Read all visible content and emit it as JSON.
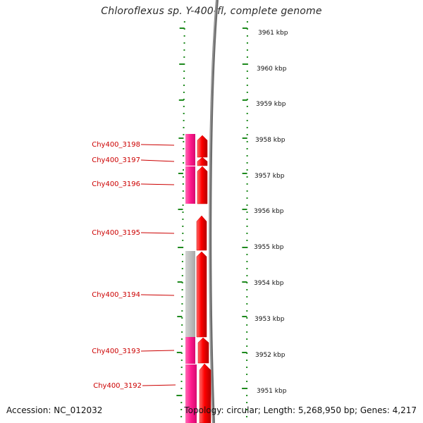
{
  "title": "Chloroflexus sp. Y-400-fl, complete genome",
  "accession_text": "Accession: NC_012032",
  "topology_text": "Topology: circular; Length: 5,268,950 bp; Genes: 4,217",
  "genome_axis": {
    "unit": "kbp",
    "tick_labels": [
      "3961 kbp",
      "3960 kbp",
      "3959 kbp",
      "3958 kbp",
      "3957 kbp",
      "3956 kbp",
      "3955 kbp",
      "3954 kbp",
      "3953 kbp",
      "3952 kbp",
      "3951 kbp"
    ]
  },
  "genes": [
    {
      "id": "Chy400_3198",
      "label_color": "#cc0000"
    },
    {
      "id": "Chy400_3197",
      "label_color": "#cc0000"
    },
    {
      "id": "Chy400_3196",
      "label_color": "#cc0000"
    },
    {
      "id": "Chy400_3195",
      "label_color": "#cc0000"
    },
    {
      "id": "Chy400_3194",
      "label_color": "#cc0000"
    },
    {
      "id": "Chy400_3193",
      "label_color": "#cc0000"
    },
    {
      "id": "Chy400_3192",
      "label_color": "#cc0000"
    }
  ],
  "colors": {
    "axis_dots": "#1e8a1e",
    "gene_arrow": "#ff0000",
    "cog_pink": "#ff1a8c",
    "cog_gray": "#bdbdbd",
    "backbone": "#707070",
    "label": "#cc0000"
  }
}
